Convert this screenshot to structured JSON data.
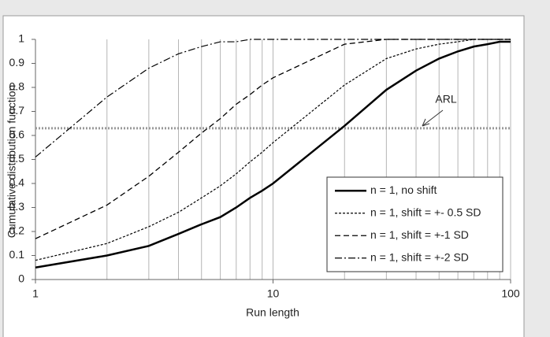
{
  "chart_data": {
    "type": "line",
    "x_label": "Run length",
    "y_label": "Cumulative distribution function",
    "x": [
      1,
      2,
      3,
      4,
      5,
      6,
      7,
      8,
      9,
      10,
      20,
      30,
      40,
      50,
      60,
      70,
      80,
      90,
      100
    ],
    "series": [
      {
        "name": "n = 1, no shift",
        "color": "#000000",
        "dash": "solid",
        "values": [
          0.05,
          0.1,
          0.14,
          0.19,
          0.23,
          0.26,
          0.3,
          0.34,
          0.37,
          0.4,
          0.64,
          0.79,
          0.87,
          0.92,
          0.95,
          0.97,
          0.98,
          0.99,
          0.99
        ]
      },
      {
        "name": "n = 1, shift = +- 0.5 SD",
        "color": "#000000",
        "dash": "dotted",
        "values": [
          0.08,
          0.15,
          0.22,
          0.28,
          0.34,
          0.39,
          0.44,
          0.49,
          0.53,
          0.57,
          0.81,
          0.92,
          0.96,
          0.98,
          0.99,
          1,
          1,
          1,
          1
        ]
      },
      {
        "name": "n = 1, shift = +-1 SD",
        "color": "#000000",
        "dash": "dashed",
        "values": [
          0.17,
          0.31,
          0.43,
          0.53,
          0.61,
          0.67,
          0.73,
          0.77,
          0.81,
          0.84,
          0.98,
          1,
          1,
          1,
          1,
          1,
          1,
          1,
          1
        ]
      },
      {
        "name": "n = 1, shift = +-2 SD",
        "color": "#000000",
        "dash": "dashdot",
        "values": [
          0.51,
          0.76,
          0.88,
          0.94,
          0.97,
          0.99,
          0.99,
          1,
          1,
          1,
          1,
          1,
          1,
          1,
          1,
          1,
          1,
          1,
          1
        ]
      }
    ],
    "reference_line": {
      "value": 0.63,
      "label": "ARL",
      "color": "#999999"
    },
    "xlim": [
      1,
      100
    ],
    "xticks": [
      1,
      10,
      100
    ],
    "xscale": "log",
    "ylim": [
      0,
      1
    ],
    "yticks": [
      0,
      0.1,
      0.2,
      0.3,
      0.4,
      0.5,
      0.6,
      0.7,
      0.8,
      0.9,
      1
    ],
    "grid": true,
    "legend": "lower right"
  }
}
